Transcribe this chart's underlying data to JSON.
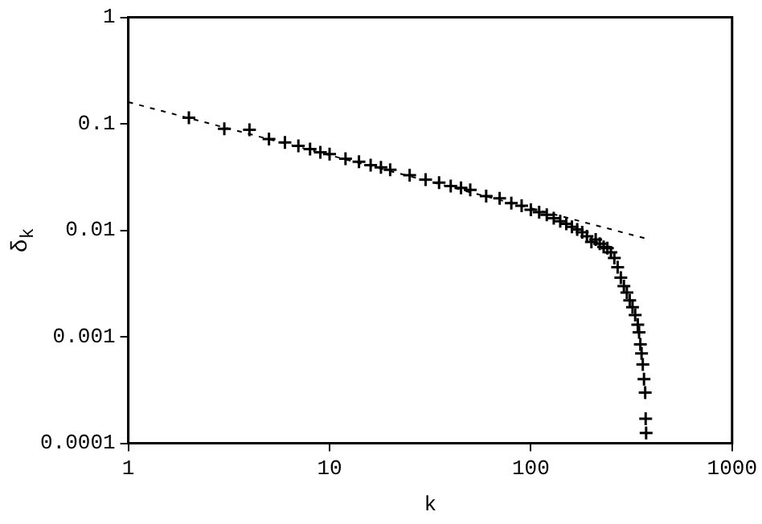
{
  "chart_data": {
    "type": "scatter",
    "xlabel": "k",
    "ylabel": "δ$_{k}$",
    "log": "xy",
    "grid": false,
    "legend": false,
    "xlim": [
      1,
      1000
    ],
    "xticks": [
      1,
      10,
      100,
      1000
    ],
    "ylim": [
      0.0001,
      1
    ],
    "yticks": [
      0.0001,
      0.001,
      0.01,
      0.1,
      1
    ],
    "series": [
      {
        "type": "scatter",
        "color": "#000000",
        "marker": "cross",
        "x": [
          2,
          3,
          4,
          5,
          6,
          7,
          8,
          9,
          10,
          12,
          14,
          16,
          18,
          20,
          25,
          30,
          35,
          40,
          45,
          50,
          60,
          70,
          80,
          90,
          100,
          110,
          120,
          130,
          140,
          150,
          160,
          170,
          180,
          190,
          200,
          210,
          220,
          230,
          240,
          250,
          260,
          270,
          280,
          290,
          300,
          310,
          320,
          330,
          340,
          345,
          350,
          355,
          360,
          365,
          370,
          372,
          374
        ],
        "values": [
          0.114,
          0.09,
          0.088,
          0.072,
          0.067,
          0.062,
          0.058,
          0.054,
          0.052,
          0.047,
          0.044,
          0.041,
          0.039,
          0.037,
          0.033,
          0.03,
          0.028,
          0.026,
          0.025,
          0.024,
          0.021,
          0.02,
          0.018,
          0.017,
          0.0156,
          0.0148,
          0.014,
          0.013,
          0.0122,
          0.0115,
          0.0108,
          0.0102,
          0.0096,
          0.0088,
          0.0078,
          0.0082,
          0.0075,
          0.007,
          0.0068,
          0.0062,
          0.0055,
          0.0045,
          0.0036,
          0.003,
          0.0026,
          0.0022,
          0.0019,
          0.0016,
          0.0013,
          0.0011,
          0.00085,
          0.0007,
          0.00055,
          0.0004,
          0.0003,
          0.00017,
          0.000125
        ]
      },
      {
        "type": "line",
        "color": "#000000",
        "marker": "none",
        "line_style": "dashed",
        "x": [
          1,
          380
        ],
        "values": [
          0.16,
          0.0083
        ]
      }
    ]
  }
}
